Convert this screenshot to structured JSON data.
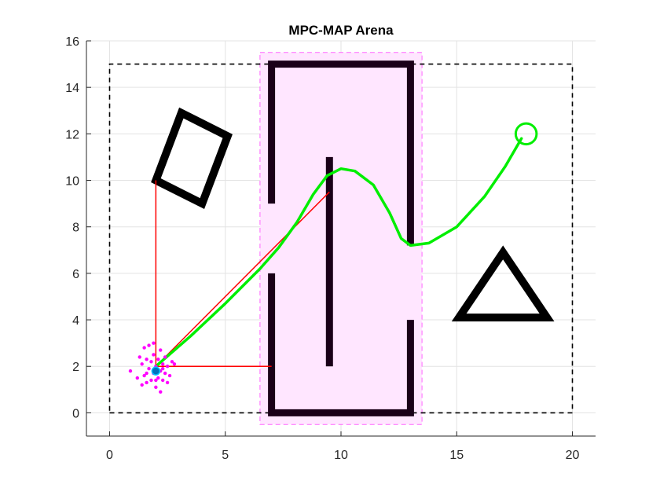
{
  "chart_data": {
    "type": "scatter",
    "title": "MPC-MAP Arena",
    "xlim": [
      -1,
      21
    ],
    "ylim": [
      -1,
      16
    ],
    "xticks": [
      0,
      5,
      10,
      15,
      20
    ],
    "yticks": [
      0,
      2,
      4,
      6,
      8,
      10,
      12,
      14,
      16
    ],
    "grid": true,
    "colors": {
      "walls": "#1a0018",
      "obstacles": "#000000",
      "path": "#00ee00",
      "rays": "#ff0000",
      "particles": "#ff00ff",
      "robot": "#0072bd",
      "zone_fill": "#ffe6ff",
      "zone_edge": "#ff66ff",
      "boundary": "#000000"
    },
    "arena_boundary": [
      [
        0,
        0
      ],
      [
        20,
        0
      ],
      [
        20,
        15
      ],
      [
        0,
        15
      ],
      [
        0,
        0
      ]
    ],
    "zone": {
      "x": [
        6.5,
        13.5
      ],
      "y": [
        -0.5,
        15.5
      ]
    },
    "walls": [
      [
        [
          7,
          9
        ],
        [
          7,
          15
        ],
        [
          13,
          15
        ],
        [
          13,
          7.2
        ]
      ],
      [
        [
          7,
          6
        ],
        [
          7,
          0
        ],
        [
          13,
          0
        ],
        [
          13,
          4
        ]
      ],
      [
        [
          9.5,
          2
        ],
        [
          9.5,
          11
        ]
      ]
    ],
    "obstacles": [
      [
        [
          2,
          10
        ],
        [
          3.1,
          12.9
        ],
        [
          5.1,
          11.9
        ],
        [
          4,
          9
        ]
      ],
      [
        [
          15.1,
          4.1
        ],
        [
          17,
          6.9
        ],
        [
          18.9,
          4.1
        ]
      ]
    ],
    "goal": {
      "x": 18,
      "y": 12,
      "r": 0.45
    },
    "path": [
      [
        2,
        2
      ],
      [
        3.5,
        3.3
      ],
      [
        5,
        4.7
      ],
      [
        6.5,
        6.2
      ],
      [
        7.3,
        7.1
      ],
      [
        8.1,
        8.2
      ],
      [
        8.8,
        9.4
      ],
      [
        9.4,
        10.2
      ],
      [
        10,
        10.5
      ],
      [
        10.6,
        10.4
      ],
      [
        11.4,
        9.8
      ],
      [
        12.1,
        8.6
      ],
      [
        12.6,
        7.5
      ],
      [
        13,
        7.2
      ],
      [
        13.8,
        7.3
      ],
      [
        15,
        8
      ],
      [
        16.2,
        9.3
      ],
      [
        17.1,
        10.6
      ],
      [
        17.8,
        11.8
      ]
    ],
    "rays": [
      [
        [
          2,
          2
        ],
        [
          2,
          10
        ]
      ],
      [
        [
          2,
          2
        ],
        [
          7,
          2
        ]
      ],
      [
        [
          2,
          2
        ],
        [
          9.5,
          9.5
        ]
      ]
    ],
    "robot": {
      "x": 2,
      "y": 1.8
    },
    "particles": [
      [
        0.9,
        1.8
      ],
      [
        1.3,
        2.4
      ],
      [
        1.4,
        2.1
      ],
      [
        1.5,
        1.6
      ],
      [
        1.5,
        2.8
      ],
      [
        1.6,
        1.3
      ],
      [
        1.6,
        2.3
      ],
      [
        1.7,
        1.9
      ],
      [
        1.7,
        2.9
      ],
      [
        1.8,
        1.4
      ],
      [
        1.8,
        2.2
      ],
      [
        1.9,
        1.7
      ],
      [
        1.9,
        2.5
      ],
      [
        2.0,
        1.1
      ],
      [
        2.0,
        2.0
      ],
      [
        2.1,
        1.5
      ],
      [
        2.1,
        2.3
      ],
      [
        2.2,
        1.8
      ],
      [
        2.2,
        0.9
      ],
      [
        2.3,
        2.1
      ],
      [
        2.3,
        1.4
      ],
      [
        2.4,
        1.7
      ],
      [
        2.4,
        2.4
      ],
      [
        2.5,
        1.3
      ],
      [
        2.5,
        2.0
      ],
      [
        2.6,
        1.6
      ],
      [
        2.7,
        2.2
      ],
      [
        2.8,
        2.1
      ],
      [
        1.2,
        1.5
      ],
      [
        1.4,
        1.2
      ],
      [
        1.9,
        3.0
      ],
      [
        2.2,
        2.7
      ],
      [
        1.6,
        1.7
      ],
      [
        2.0,
        1.4
      ],
      [
        2.3,
        1.9
      ]
    ]
  }
}
